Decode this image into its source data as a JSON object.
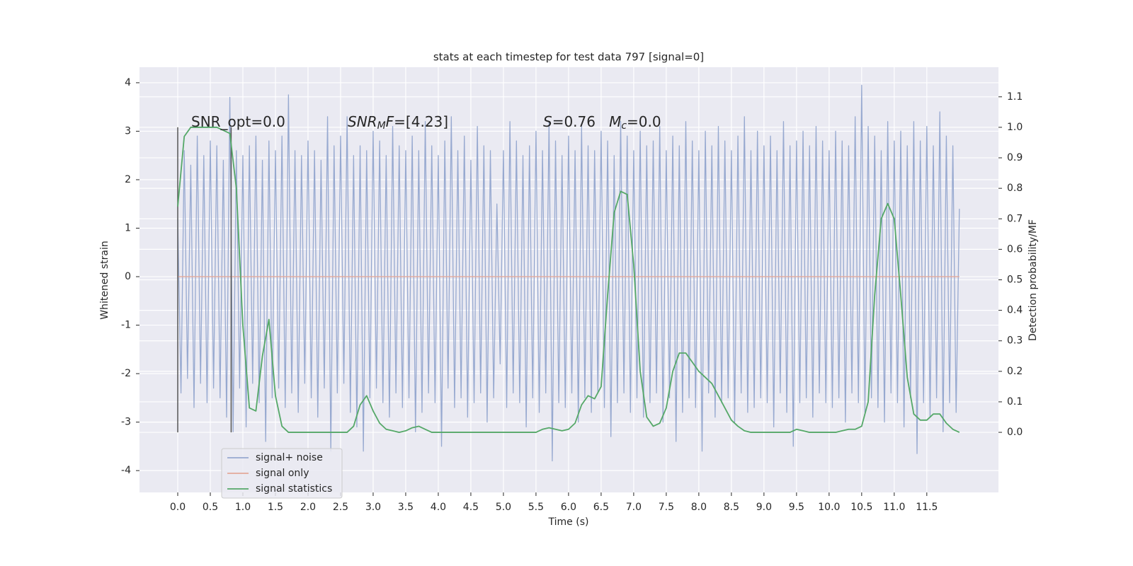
{
  "chart_data": {
    "type": "line",
    "title": "stats at each timestep for test data 797 [signal=0]",
    "xlabel": "Time (s)",
    "ylabel": "Whitened strain",
    "y2label": "Detection probability/MF",
    "xlim": [
      -0.587,
      12.6
    ],
    "ylim": [
      -4.45,
      4.32
    ],
    "y2lim": [
      -0.197,
      1.197
    ],
    "xticks": [
      {
        "value": 0,
        "label": "0.0"
      },
      0.5,
      {
        "value": 1,
        "label": "1.0"
      },
      1.5,
      {
        "value": 2,
        "label": "2.0"
      },
      2.5,
      {
        "value": 3,
        "label": "3.0"
      },
      3.5,
      {
        "value": 4,
        "label": "4.0"
      },
      4.5,
      {
        "value": 5,
        "label": "5.0"
      },
      5.5,
      {
        "value": 6,
        "label": "6.0"
      },
      6.5,
      {
        "value": 7,
        "label": "7.0"
      },
      7.5,
      {
        "value": 8,
        "label": "8.0"
      },
      8.5,
      {
        "value": 9,
        "label": "9.0"
      },
      9.5,
      {
        "value": 10,
        "label": "10.0"
      },
      10.5,
      {
        "value": 11,
        "label": "11.0"
      },
      11.5
    ],
    "yticks": [
      -4,
      -3,
      -2,
      -1,
      0,
      1,
      2,
      3,
      4
    ],
    "y2ticks": [
      {
        "value": 0,
        "label": "0.0"
      },
      0.1,
      0.2,
      0.3,
      0.4,
      0.5,
      0.6,
      0.7,
      0.8,
      0.9,
      {
        "value": 1,
        "label": "1.0"
      },
      1.1
    ],
    "grid": true,
    "legend": "lower left",
    "annotations": [
      {
        "parts": [
          {
            "text": "SNR_opt=0.0",
            "style": "normal"
          }
        ]
      },
      {
        "parts": [
          {
            "text": "SNR",
            "style": "italic"
          },
          {
            "text": "M",
            "style": "sub"
          },
          {
            "text": "F",
            "style": "italic"
          },
          {
            "text": "=[4.23]",
            "style": "normal"
          }
        ]
      },
      {
        "parts": [
          {
            "text": "S",
            "style": "italic"
          },
          {
            "text": "=0.76   ",
            "style": "normal"
          },
          {
            "text": "M",
            "style": "italic"
          },
          {
            "text": "c",
            "style": "sub"
          },
          {
            "text": "=0.0",
            "style": "normal"
          }
        ]
      }
    ],
    "vlines": {
      "x": [
        0,
        0.82
      ],
      "ymin": 0,
      "ymax": 1,
      "axis": "y2",
      "color": "#555555"
    },
    "series": [
      {
        "name": "signal+ noise",
        "color": "#97a9d0",
        "x": [
          0,
          0.05,
          0.1,
          0.15,
          0.2,
          0.25,
          0.3,
          0.35,
          0.4,
          0.45,
          0.5,
          0.55,
          0.6,
          0.65,
          0.7,
          0.75,
          0.8,
          0.85,
          0.9,
          0.95,
          1,
          1.05,
          1.1,
          1.15,
          1.2,
          1.25,
          1.3,
          1.35,
          1.4,
          1.45,
          1.5,
          1.55,
          1.6,
          1.65,
          1.7,
          1.75,
          1.8,
          1.85,
          1.9,
          1.95,
          2,
          2.05,
          2.1,
          2.15,
          2.2,
          2.25,
          2.3,
          2.35,
          2.4,
          2.45,
          2.5,
          2.55,
          2.6,
          2.65,
          2.7,
          2.75,
          2.8,
          2.85,
          2.9,
          2.95,
          3,
          3.05,
          3.1,
          3.15,
          3.2,
          3.25,
          3.3,
          3.35,
          3.4,
          3.45,
          3.5,
          3.55,
          3.6,
          3.65,
          3.7,
          3.75,
          3.8,
          3.85,
          3.9,
          3.95,
          4,
          4.05,
          4.1,
          4.15,
          4.2,
          4.25,
          4.3,
          4.35,
          4.4,
          4.45,
          4.5,
          4.55,
          4.6,
          4.65,
          4.7,
          4.75,
          4.8,
          4.85,
          4.9,
          4.95,
          5,
          5.05,
          5.1,
          5.15,
          5.2,
          5.25,
          5.3,
          5.35,
          5.4,
          5.45,
          5.5,
          5.55,
          5.6,
          5.65,
          5.7,
          5.75,
          5.8,
          5.85,
          5.9,
          5.95,
          6,
          6.05,
          6.1,
          6.15,
          6.2,
          6.25,
          6.3,
          6.35,
          6.4,
          6.45,
          6.5,
          6.55,
          6.6,
          6.65,
          6.7,
          6.75,
          6.8,
          6.85,
          6.9,
          6.95,
          7,
          7.05,
          7.1,
          7.15,
          7.2,
          7.25,
          7.3,
          7.35,
          7.4,
          7.45,
          7.5,
          7.55,
          7.6,
          7.65,
          7.7,
          7.75,
          7.8,
          7.85,
          7.9,
          7.95,
          8,
          8.05,
          8.1,
          8.15,
          8.2,
          8.25,
          8.3,
          8.35,
          8.4,
          8.45,
          8.5,
          8.55,
          8.6,
          8.65,
          8.7,
          8.75,
          8.8,
          8.85,
          8.9,
          8.95,
          9,
          9.05,
          9.1,
          9.15,
          9.2,
          9.25,
          9.3,
          9.35,
          9.4,
          9.45,
          9.5,
          9.55,
          9.6,
          9.65,
          9.7,
          9.75,
          9.8,
          9.85,
          9.9,
          9.95,
          10,
          10.05,
          10.1,
          10.15,
          10.2,
          10.25,
          10.3,
          10.35,
          10.4,
          10.45,
          10.5,
          10.55,
          10.6,
          10.65,
          10.7,
          10.75,
          10.8,
          10.85,
          10.9,
          10.95,
          11,
          11.05,
          11.1,
          11.15,
          11.2,
          11.25,
          11.3,
          11.35,
          11.4,
          11.45,
          11.5,
          11.55,
          11.6,
          11.65,
          11.7,
          11.75,
          11.8,
          11.85,
          11.9,
          11.95,
          12
        ],
        "values": [
          1.2,
          -2.4,
          2.6,
          -2.1,
          2.3,
          -2.7,
          2.9,
          -2.2,
          2.5,
          -2.6,
          2.8,
          -2.3,
          2.7,
          -2.5,
          2.4,
          -2.9,
          3.7,
          -3.2,
          2.6,
          -2.3,
          2.5,
          -3.1,
          2.7,
          -2.2,
          2.9,
          -2.6,
          2.4,
          -3.4,
          2.8,
          -2.5,
          2.6,
          -2.3,
          2.9,
          -2.7,
          3.75,
          -2.4,
          2.6,
          -2.8,
          2.5,
          -2.2,
          2.8,
          -2.5,
          2.6,
          -2.9,
          2.4,
          -2.3,
          3.3,
          -3.6,
          2.7,
          -2.4,
          2.9,
          -2.2,
          3.3,
          -2.8,
          2.5,
          -3.1,
          2.7,
          -3.6,
          2.6,
          -2.5,
          3.0,
          -2.3,
          2.8,
          -2.6,
          2.5,
          -2.9,
          3.1,
          -2.4,
          2.7,
          -2.7,
          2.6,
          -2.5,
          2.9,
          -3.2,
          2.6,
          -2.8,
          3.2,
          -2.4,
          2.7,
          -2.6,
          2.5,
          -3.5,
          2.8,
          -2.3,
          3.3,
          -2.7,
          2.6,
          -2.5,
          2.9,
          -2.9,
          2.4,
          -2.6,
          3.1,
          -2.4,
          2.7,
          -3.0,
          2.6,
          -2.5,
          1.5,
          -1.8,
          2.6,
          -2.7,
          3.2,
          -2.4,
          2.8,
          -2.6,
          2.5,
          -3.1,
          2.7,
          -2.5,
          3.0,
          -2.8,
          2.6,
          -2.4,
          3.2,
          -3.8,
          2.8,
          -2.6,
          2.5,
          -2.7,
          2.9,
          -2.4,
          2.6,
          -3.0,
          3.1,
          -2.5,
          2.7,
          -2.8,
          2.6,
          -2.4,
          3.0,
          -2.7,
          2.8,
          -3.3,
          2.5,
          -2.6,
          3.2,
          -2.4,
          2.9,
          -2.8,
          2.6,
          -2.5,
          3.0,
          -2.9,
          2.7,
          -2.6,
          2.8,
          -2.4,
          3.1,
          -3.0,
          2.6,
          -2.5,
          2.9,
          -3.4,
          2.7,
          -2.8,
          3.2,
          -2.5,
          2.8,
          -2.7,
          2.6,
          -3.6,
          3.0,
          -2.4,
          2.7,
          -2.9,
          3.1,
          -2.6,
          2.8,
          -2.5,
          2.6,
          -3.0,
          2.9,
          -2.4,
          3.3,
          -2.8,
          2.6,
          -2.7,
          3.0,
          -2.5,
          2.7,
          -2.6,
          2.9,
          -3.1,
          2.6,
          -2.4,
          3.2,
          -2.8,
          2.7,
          -3.5,
          2.8,
          -2.6,
          3.0,
          -2.5,
          2.7,
          -2.9,
          3.1,
          -2.4,
          2.8,
          -2.6,
          2.6,
          -2.7,
          3.0,
          -2.5,
          2.8,
          -3.0,
          2.7,
          -2.4,
          3.3,
          -2.6,
          3.95,
          -2.8,
          3.1,
          -2.5,
          2.9,
          -2.7,
          2.6,
          -3.0,
          3.2,
          -2.4,
          2.8,
          -2.6,
          3.0,
          -3.1,
          2.7,
          -2.5,
          3.2,
          -3.65,
          2.8,
          -2.6,
          3.1,
          -2.9,
          2.7,
          -2.5,
          3.4,
          -3.2,
          2.9,
          -2.6,
          2.7,
          -2.8,
          1.4
        ]
      },
      {
        "name": "signal only",
        "color": "#e3a99a",
        "x": [
          0,
          12
        ],
        "values": [
          0,
          0
        ]
      },
      {
        "name": "signal statistics",
        "color": "#55a868",
        "axis": "y2",
        "x": [
          0,
          0.1,
          0.2,
          0.3,
          0.4,
          0.5,
          0.6,
          0.7,
          0.8,
          0.9,
          1,
          1.1,
          1.2,
          1.3,
          1.4,
          1.5,
          1.6,
          1.7,
          1.8,
          1.9,
          2,
          2.1,
          2.2,
          2.3,
          2.4,
          2.5,
          2.6,
          2.7,
          2.8,
          2.9,
          3,
          3.1,
          3.2,
          3.3,
          3.4,
          3.5,
          3.6,
          3.7,
          3.8,
          3.9,
          4,
          4.1,
          4.2,
          4.3,
          4.4,
          4.5,
          4.6,
          4.7,
          4.8,
          4.9,
          5,
          5.1,
          5.2,
          5.3,
          5.4,
          5.5,
          5.6,
          5.7,
          5.8,
          5.9,
          6,
          6.1,
          6.2,
          6.3,
          6.4,
          6.5,
          6.6,
          6.7,
          6.8,
          6.9,
          7,
          7.1,
          7.2,
          7.3,
          7.4,
          7.5,
          7.6,
          7.7,
          7.8,
          7.9,
          8,
          8.1,
          8.2,
          8.3,
          8.4,
          8.5,
          8.6,
          8.7,
          8.8,
          8.9,
          9,
          9.1,
          9.2,
          9.3,
          9.4,
          9.5,
          9.6,
          9.7,
          9.8,
          9.9,
          10,
          10.1,
          10.2,
          10.3,
          10.4,
          10.5,
          10.6,
          10.7,
          10.8,
          10.9,
          11,
          11.1,
          11.2,
          11.3,
          11.4,
          11.5,
          11.6,
          11.7,
          11.8,
          11.9,
          12
        ],
        "values": [
          0.74,
          0.97,
          1,
          1,
          1,
          1,
          1,
          0.99,
          0.98,
          0.8,
          0.35,
          0.08,
          0.07,
          0.25,
          0.37,
          0.12,
          0.02,
          0,
          0,
          0,
          0,
          0,
          0,
          0,
          0,
          0,
          0,
          0.02,
          0.09,
          0.12,
          0.07,
          0.03,
          0.01,
          0.005,
          0,
          0.005,
          0.015,
          0.02,
          0.01,
          0,
          0,
          0,
          0,
          0,
          0,
          0,
          0,
          0,
          0,
          0,
          0,
          0,
          0,
          0,
          0,
          0,
          0.01,
          0.015,
          0.01,
          0.005,
          0.01,
          0.03,
          0.09,
          0.12,
          0.11,
          0.15,
          0.45,
          0.72,
          0.79,
          0.78,
          0.55,
          0.2,
          0.05,
          0.02,
          0.03,
          0.08,
          0.2,
          0.26,
          0.26,
          0.23,
          0.2,
          0.18,
          0.16,
          0.12,
          0.08,
          0.04,
          0.02,
          0.005,
          0,
          0,
          0,
          0,
          0,
          0,
          0,
          0.01,
          0.005,
          0,
          0,
          0,
          0,
          0,
          0.005,
          0.01,
          0.01,
          0.02,
          0.1,
          0.45,
          0.7,
          0.75,
          0.7,
          0.45,
          0.18,
          0.06,
          0.04,
          0.04,
          0.06,
          0.06,
          0.03,
          0.01,
          0
        ]
      }
    ]
  }
}
